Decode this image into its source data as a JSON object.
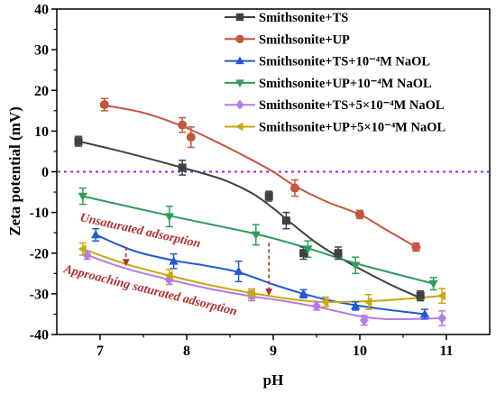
{
  "chart_data": {
    "type": "line",
    "xlabel": "pH",
    "ylabel": "Zeta potential (mV)",
    "xlim": [
      6.5,
      11.5
    ],
    "ylim": [
      -40,
      40
    ],
    "xticks": [
      7,
      8,
      9,
      10,
      11
    ],
    "yticks": [
      -40,
      -30,
      -20,
      -10,
      0,
      10,
      20,
      30,
      40
    ],
    "legend_position": "top-right",
    "reference_line": {
      "y": 0,
      "color": "#a020f0",
      "style": "dotted"
    },
    "series": [
      {
        "name": "Smithsonite+TS",
        "color": "#404040",
        "marker": "square",
        "x": [
          6.75,
          7.95,
          8.95,
          9.15,
          9.35,
          9.75,
          10.7
        ],
        "y": [
          7.5,
          1.0,
          -6.0,
          -12.0,
          -20.0,
          -20.0,
          -30.5
        ],
        "err": [
          1.2,
          1.8,
          1.2,
          2.0,
          1.5,
          1.5,
          1.2
        ],
        "curve_x": [
          6.75,
          7.3,
          7.95,
          8.4,
          8.75,
          9.0,
          9.2,
          9.5,
          9.8,
          10.1,
          10.4,
          10.7
        ],
        "curve_y": [
          7.5,
          4.7,
          1.0,
          -1.8,
          -5.2,
          -9.0,
          -12.5,
          -17.5,
          -21.5,
          -25.0,
          -28.2,
          -31.0
        ]
      },
      {
        "name": "Smithsonite+UP",
        "color": "#c8553d",
        "marker": "circle",
        "x": [
          7.05,
          7.95,
          8.05,
          9.25,
          10.0,
          10.65
        ],
        "y": [
          16.5,
          11.5,
          8.5,
          -4.0,
          -10.5,
          -18.5
        ],
        "err": [
          1.5,
          1.8,
          2.5,
          2.0,
          1.0,
          1.0
        ],
        "curve_x": [
          7.05,
          7.5,
          7.95,
          8.3,
          8.7,
          9.0,
          9.25,
          9.6,
          10.0,
          10.3,
          10.65
        ],
        "curve_y": [
          16.3,
          14.5,
          11.2,
          7.8,
          3.5,
          0,
          -3.5,
          -7.2,
          -10.5,
          -14.2,
          -18.5
        ]
      },
      {
        "name": "Smithsonite+TS+10⁻⁴M NaOL",
        "color": "#1f5bd6",
        "marker": "triangle-up",
        "x": [
          6.95,
          7.85,
          8.6,
          9.35,
          9.95,
          10.75
        ],
        "y": [
          -15.5,
          -22.0,
          -24.5,
          -30.0,
          -33.0,
          -35.0
        ],
        "err": [
          1.5,
          1.8,
          2.5,
          1.0,
          1.0,
          1.2
        ],
        "curve_x": [
          6.95,
          7.4,
          7.85,
          8.2,
          8.6,
          9.0,
          9.35,
          9.65,
          9.95,
          10.35,
          10.75
        ],
        "curve_y": [
          -15.5,
          -19.5,
          -21.8,
          -23.0,
          -24.7,
          -27.7,
          -30.0,
          -31.6,
          -32.8,
          -34.0,
          -35.0
        ]
      },
      {
        "name": "Smithsonite+UP+10⁻⁴M NaOL",
        "color": "#2e9d5b",
        "marker": "triangle-down",
        "x": [
          6.8,
          7.8,
          8.8,
          9.4,
          9.95,
          10.85
        ],
        "y": [
          -6.0,
          -11.0,
          -15.5,
          -19.0,
          -23.0,
          -27.5
        ],
        "err": [
          2.0,
          2.5,
          2.5,
          2.0,
          2.0,
          1.5
        ],
        "curve_x": [
          6.8,
          7.8,
          8.8,
          9.4,
          9.95,
          10.85
        ],
        "curve_y": [
          -6.0,
          -10.8,
          -15.3,
          -18.8,
          -22.5,
          -27.5
        ]
      },
      {
        "name": "Smithsonite+TS+5×10⁻⁴M NaOL",
        "color": "#b57be6",
        "marker": "diamond",
        "x": [
          6.85,
          7.8,
          8.75,
          9.5,
          10.05,
          10.95
        ],
        "y": [
          -20.5,
          -26.5,
          -30.5,
          -33.0,
          -36.5,
          -36.0
        ],
        "err": [
          1.0,
          1.2,
          1.2,
          1.0,
          1.2,
          1.8
        ],
        "curve_x": [
          6.85,
          7.3,
          7.8,
          8.25,
          8.75,
          9.1,
          9.5,
          9.8,
          10.05,
          10.3,
          10.6,
          10.95
        ],
        "curve_y": [
          -20.5,
          -23.8,
          -26.5,
          -28.7,
          -30.6,
          -31.7,
          -33.2,
          -34.6,
          -35.7,
          -36.2,
          -36.2,
          -36.0
        ]
      },
      {
        "name": "Smithsonite+UP+5×10⁻⁴M NaOL",
        "color": "#c8a80c",
        "marker": "triangle-left",
        "x": [
          6.8,
          7.8,
          8.75,
          9.6,
          10.1,
          10.95
        ],
        "y": [
          -19.0,
          -25.5,
          -30.0,
          -32.0,
          -32.0,
          -30.5
        ],
        "err": [
          1.5,
          1.5,
          1.2,
          1.2,
          1.8,
          1.8
        ],
        "curve_x": [
          6.8,
          7.3,
          7.8,
          8.25,
          8.75,
          9.2,
          9.6,
          10.1,
          10.5,
          10.95
        ],
        "curve_y": [
          -19.0,
          -22.7,
          -25.5,
          -27.8,
          -29.8,
          -31.3,
          -32.0,
          -31.8,
          -31.3,
          -30.5
        ]
      }
    ],
    "annotations": [
      {
        "text": "Unsaturated adsorption",
        "color": "#b03030"
      },
      {
        "text": "Approaching saturated adsorption",
        "color": "#b03030"
      }
    ],
    "arrows": [
      {
        "x": 7.3,
        "y_from": -18.5,
        "y_to": -23.2,
        "color": "#b03030"
      },
      {
        "x": 8.95,
        "y_from": -17.5,
        "y_to": -30.5,
        "color": "#b03030"
      }
    ]
  }
}
